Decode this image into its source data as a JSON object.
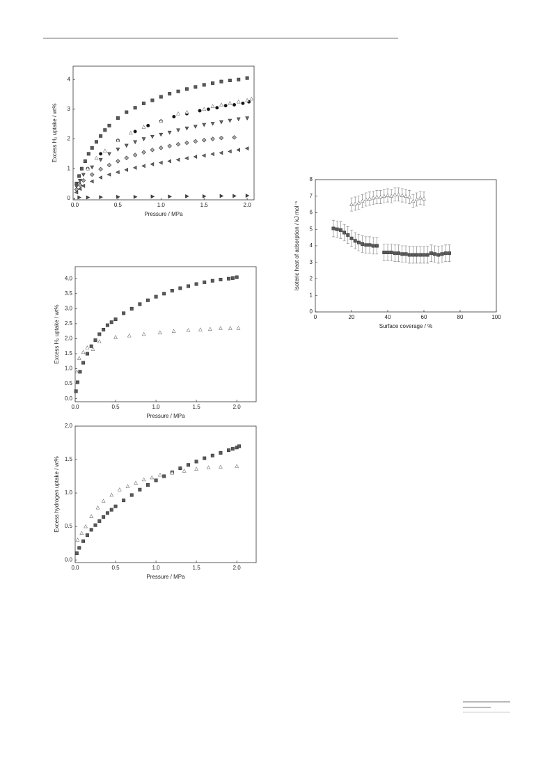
{
  "chart_data": [
    {
      "type": "scatter",
      "x_label": "Pressure / MPa",
      "y_label": "Excess H₂ uptake / wt%",
      "xlim": [
        -0.02,
        2.08
      ],
      "ylim": [
        -0.05,
        4.45
      ],
      "xticks": [
        {
          "value": 0,
          "label": "0.0"
        },
        {
          "value": 0.5,
          "label": "0.5"
        },
        {
          "value": 1,
          "label": "1.0"
        },
        {
          "value": 1.5,
          "label": "1.5"
        },
        {
          "value": 2,
          "label": "2.0"
        }
      ],
      "yticks": [
        0,
        1,
        2,
        3,
        4
      ],
      "series": [
        {
          "marker": "square",
          "color": "#5a5a5a",
          "x": [
            0.02,
            0.05,
            0.08,
            0.12,
            0.16,
            0.2,
            0.25,
            0.3,
            0.35,
            0.4,
            0.5,
            0.6,
            0.7,
            0.8,
            0.9,
            1.0,
            1.1,
            1.2,
            1.3,
            1.4,
            1.5,
            1.6,
            1.7,
            1.8,
            1.9,
            2.0
          ],
          "values": [
            0.5,
            0.75,
            1.0,
            1.25,
            1.5,
            1.7,
            1.9,
            2.1,
            2.3,
            2.45,
            2.7,
            2.9,
            3.05,
            3.2,
            3.3,
            3.42,
            3.52,
            3.6,
            3.68,
            3.75,
            3.82,
            3.88,
            3.93,
            3.97,
            4.0,
            4.05
          ]
        },
        {
          "marker": "circle",
          "color": "#111111",
          "x": [
            0.05,
            0.15,
            0.3,
            0.5,
            0.7,
            0.85,
            1.0,
            1.15,
            1.3,
            1.45,
            1.55,
            1.65,
            1.75,
            1.85,
            1.95,
            2.02
          ],
          "values": [
            0.5,
            1.0,
            1.5,
            1.95,
            2.25,
            2.45,
            2.6,
            2.75,
            2.85,
            2.95,
            3.0,
            3.05,
            3.12,
            3.15,
            3.2,
            3.25
          ]
        },
        {
          "marker": "triangle-up-open",
          "color": "#777777",
          "x": [
            0.05,
            0.15,
            0.25,
            0.35,
            0.5,
            0.65,
            0.8,
            1.0,
            1.2,
            1.3,
            1.5,
            1.6,
            1.7,
            1.8,
            1.9,
            2.0,
            2.05
          ],
          "values": [
            0.5,
            1.0,
            1.35,
            1.6,
            1.95,
            2.2,
            2.4,
            2.6,
            2.85,
            2.9,
            3.0,
            3.1,
            3.15,
            3.2,
            3.25,
            3.3,
            3.35
          ]
        },
        {
          "marker": "triangle-down",
          "color": "#666666",
          "x": [
            0.02,
            0.06,
            0.1,
            0.2,
            0.3,
            0.4,
            0.5,
            0.6,
            0.7,
            0.8,
            0.9,
            1.0,
            1.1,
            1.2,
            1.3,
            1.4,
            1.5,
            1.6,
            1.7,
            1.8,
            1.9,
            2.0
          ],
          "values": [
            0.4,
            0.6,
            0.8,
            1.05,
            1.3,
            1.5,
            1.65,
            1.78,
            1.9,
            2.0,
            2.08,
            2.15,
            2.22,
            2.3,
            2.36,
            2.42,
            2.48,
            2.52,
            2.57,
            2.62,
            2.67,
            2.7
          ]
        },
        {
          "marker": "diamond",
          "color": "#aaaaaa",
          "x": [
            0.02,
            0.06,
            0.1,
            0.2,
            0.3,
            0.4,
            0.5,
            0.6,
            0.7,
            0.8,
            0.9,
            1.0,
            1.1,
            1.2,
            1.3,
            1.4,
            1.5,
            1.6,
            1.7,
            1.85
          ],
          "values": [
            0.3,
            0.45,
            0.6,
            0.8,
            0.98,
            1.12,
            1.25,
            1.36,
            1.46,
            1.55,
            1.63,
            1.7,
            1.76,
            1.82,
            1.87,
            1.92,
            1.96,
            2.0,
            2.03,
            2.05
          ]
        },
        {
          "marker": "triangle-left",
          "color": "#666666",
          "x": [
            0.02,
            0.06,
            0.1,
            0.2,
            0.3,
            0.4,
            0.5,
            0.6,
            0.7,
            0.8,
            0.9,
            1.0,
            1.1,
            1.2,
            1.3,
            1.4,
            1.5,
            1.6,
            1.7,
            1.8,
            1.9,
            2.0
          ],
          "values": [
            0.2,
            0.32,
            0.42,
            0.57,
            0.7,
            0.8,
            0.88,
            0.96,
            1.03,
            1.09,
            1.15,
            1.2,
            1.25,
            1.3,
            1.35,
            1.4,
            1.44,
            1.49,
            1.53,
            1.58,
            1.63,
            1.68
          ]
        },
        {
          "marker": "triangle-right",
          "color": "#444444",
          "x": [
            0.05,
            0.15,
            0.3,
            0.5,
            0.7,
            0.9,
            1.1,
            1.3,
            1.5,
            1.7,
            1.85,
            2.0
          ],
          "values": [
            0.03,
            0.03,
            0.04,
            0.05,
            0.05,
            0.06,
            0.06,
            0.07,
            0.07,
            0.08,
            0.08,
            0.09
          ]
        }
      ]
    },
    {
      "type": "scatter",
      "x_label": "Pressure / MPa",
      "y_label": "Excess H₂ uptake / wt%",
      "xlim": [
        0,
        2.24
      ],
      "ylim": [
        -0.1,
        4.4
      ],
      "xticks": [
        {
          "value": 0,
          "label": "0.0"
        },
        {
          "value": 0.5,
          "label": "0.5"
        },
        {
          "value": 1,
          "label": "1.0"
        },
        {
          "value": 1.5,
          "label": "1.5"
        },
        {
          "value": 2,
          "label": "2.0"
        }
      ],
      "yticks": [
        {
          "value": 0,
          "label": "0.0"
        },
        {
          "value": 0.5,
          "label": "0.5"
        },
        {
          "value": 1,
          "label": "1.0"
        },
        {
          "value": 1.5,
          "label": "1.5"
        },
        {
          "value": 2,
          "label": "2.0"
        },
        {
          "value": 2.5,
          "label": "2.5"
        },
        {
          "value": 3,
          "label": "3.0"
        },
        {
          "value": 3.5,
          "label": "3.5"
        },
        {
          "value": 4,
          "label": "4.0"
        }
      ],
      "series": [
        {
          "marker": "square",
          "color": "#5a5a5a",
          "x": [
            0.01,
            0.03,
            0.06,
            0.1,
            0.15,
            0.2,
            0.25,
            0.3,
            0.35,
            0.4,
            0.45,
            0.5,
            0.6,
            0.7,
            0.8,
            0.9,
            1.0,
            1.1,
            1.2,
            1.3,
            1.4,
            1.5,
            1.6,
            1.7,
            1.8,
            1.9,
            1.95,
            2.0
          ],
          "values": [
            0.25,
            0.55,
            0.9,
            1.2,
            1.5,
            1.75,
            1.95,
            2.15,
            2.3,
            2.45,
            2.55,
            2.65,
            2.85,
            3.0,
            3.15,
            3.28,
            3.4,
            3.5,
            3.6,
            3.68,
            3.75,
            3.82,
            3.88,
            3.93,
            3.97,
            4.0,
            4.02,
            4.05
          ]
        },
        {
          "marker": "triangle-up-open",
          "color": "#777777",
          "x": [
            0.02,
            0.05,
            0.1,
            0.15,
            0.22,
            0.3,
            0.5,
            0.67,
            0.85,
            1.05,
            1.22,
            1.4,
            1.55,
            1.67,
            1.8,
            1.92,
            2.02
          ],
          "values": [
            0.9,
            1.35,
            1.55,
            1.7,
            1.65,
            1.9,
            2.05,
            2.1,
            2.15,
            2.2,
            2.25,
            2.28,
            2.3,
            2.32,
            2.35,
            2.35,
            2.35
          ]
        }
      ]
    },
    {
      "type": "scatter",
      "x_label": "Pressure / MPa",
      "y_label": "Excess hydrogen uptake / wt%",
      "xlim": [
        0,
        2.24
      ],
      "ylim": [
        -0.04,
        2.0
      ],
      "xticks": [
        {
          "value": 0,
          "label": "0.0"
        },
        {
          "value": 0.5,
          "label": "0.5"
        },
        {
          "value": 1,
          "label": "1.0"
        },
        {
          "value": 1.5,
          "label": "1.5"
        },
        {
          "value": 2,
          "label": "2.0"
        }
      ],
      "yticks": [
        {
          "value": 0,
          "label": "0.0"
        },
        {
          "value": 0.5,
          "label": "0.5"
        },
        {
          "value": 1,
          "label": "1.0"
        },
        {
          "value": 1.5,
          "label": "1.5"
        },
        {
          "value": 2,
          "label": "2.0"
        }
      ],
      "series": [
        {
          "marker": "square",
          "color": "#5a5a5a",
          "x": [
            0.02,
            0.05,
            0.1,
            0.15,
            0.2,
            0.25,
            0.3,
            0.35,
            0.4,
            0.45,
            0.5,
            0.6,
            0.7,
            0.8,
            0.9,
            1.0,
            1.1,
            1.2,
            1.3,
            1.4,
            1.5,
            1.6,
            1.7,
            1.8,
            1.9,
            1.95,
            2.0,
            2.03
          ],
          "values": [
            0.1,
            0.18,
            0.28,
            0.37,
            0.45,
            0.52,
            0.58,
            0.64,
            0.7,
            0.75,
            0.8,
            0.89,
            0.97,
            1.05,
            1.12,
            1.19,
            1.25,
            1.31,
            1.37,
            1.42,
            1.47,
            1.52,
            1.56,
            1.6,
            1.64,
            1.66,
            1.68,
            1.7
          ]
        },
        {
          "marker": "triangle-up-open",
          "color": "#777777",
          "x": [
            0.03,
            0.08,
            0.13,
            0.2,
            0.28,
            0.35,
            0.45,
            0.55,
            0.65,
            0.75,
            0.85,
            0.95,
            1.05,
            1.2,
            1.35,
            1.5,
            1.65,
            1.8,
            2.0
          ],
          "values": [
            0.3,
            0.4,
            0.5,
            0.65,
            0.78,
            0.88,
            0.97,
            1.05,
            1.1,
            1.15,
            1.2,
            1.23,
            1.27,
            1.3,
            1.33,
            1.36,
            1.38,
            1.39,
            1.4
          ]
        }
      ]
    },
    {
      "type": "scatter",
      "x_label": "Surface coverage / %",
      "y_label": "Isoteric heat of adsorption / kJ mol⁻¹",
      "xlim": [
        0,
        100
      ],
      "ylim": [
        0,
        8
      ],
      "xticks": [
        0,
        20,
        40,
        60,
        80,
        100
      ],
      "yticks": [
        0,
        1,
        2,
        3,
        4,
        5,
        6,
        7,
        8
      ],
      "series": [
        {
          "marker": "square",
          "color": "#5a5a5a",
          "x": [
            10,
            12,
            14,
            16,
            18,
            20,
            22,
            24,
            26,
            28,
            30,
            32,
            34,
            38,
            40,
            42,
            44,
            46,
            48,
            50,
            52,
            54,
            56,
            58,
            60,
            62,
            64,
            66,
            68,
            70,
            72,
            74
          ],
          "values": [
            5.05,
            5.0,
            4.95,
            4.8,
            4.65,
            4.45,
            4.3,
            4.2,
            4.1,
            4.05,
            4.05,
            4.0,
            4.0,
            3.6,
            3.6,
            3.6,
            3.55,
            3.55,
            3.5,
            3.5,
            3.45,
            3.45,
            3.45,
            3.45,
            3.45,
            3.45,
            3.55,
            3.5,
            3.45,
            3.5,
            3.55,
            3.55
          ],
          "errors": [
            0.5,
            0.5,
            0.5,
            0.5,
            0.5,
            0.5,
            0.5,
            0.5,
            0.5,
            0.5,
            0.5,
            0.5,
            0.5,
            0.5,
            0.5,
            0.5,
            0.5,
            0.5,
            0.5,
            0.5,
            0.5,
            0.5,
            0.5,
            0.5,
            0.5,
            0.5,
            0.5,
            0.5,
            0.5,
            0.5,
            0.5,
            0.5
          ]
        },
        {
          "marker": "triangle-up-open",
          "color": "#777777",
          "x": [
            20,
            22,
            24,
            26,
            28,
            30,
            32,
            34,
            36,
            38,
            40,
            42,
            44,
            46,
            48,
            50,
            52,
            54,
            56,
            58,
            60
          ],
          "values": [
            6.5,
            6.55,
            6.6,
            6.7,
            6.8,
            6.85,
            6.9,
            6.95,
            6.95,
            7.0,
            7.05,
            7.0,
            7.1,
            7.1,
            7.05,
            7.0,
            6.95,
            6.7,
            6.8,
            6.9,
            6.85
          ],
          "errors": [
            0.4,
            0.4,
            0.4,
            0.4,
            0.4,
            0.4,
            0.4,
            0.4,
            0.4,
            0.4,
            0.4,
            0.4,
            0.4,
            0.4,
            0.4,
            0.4,
            0.4,
            0.4,
            0.4,
            0.4,
            0.4
          ]
        }
      ]
    }
  ]
}
